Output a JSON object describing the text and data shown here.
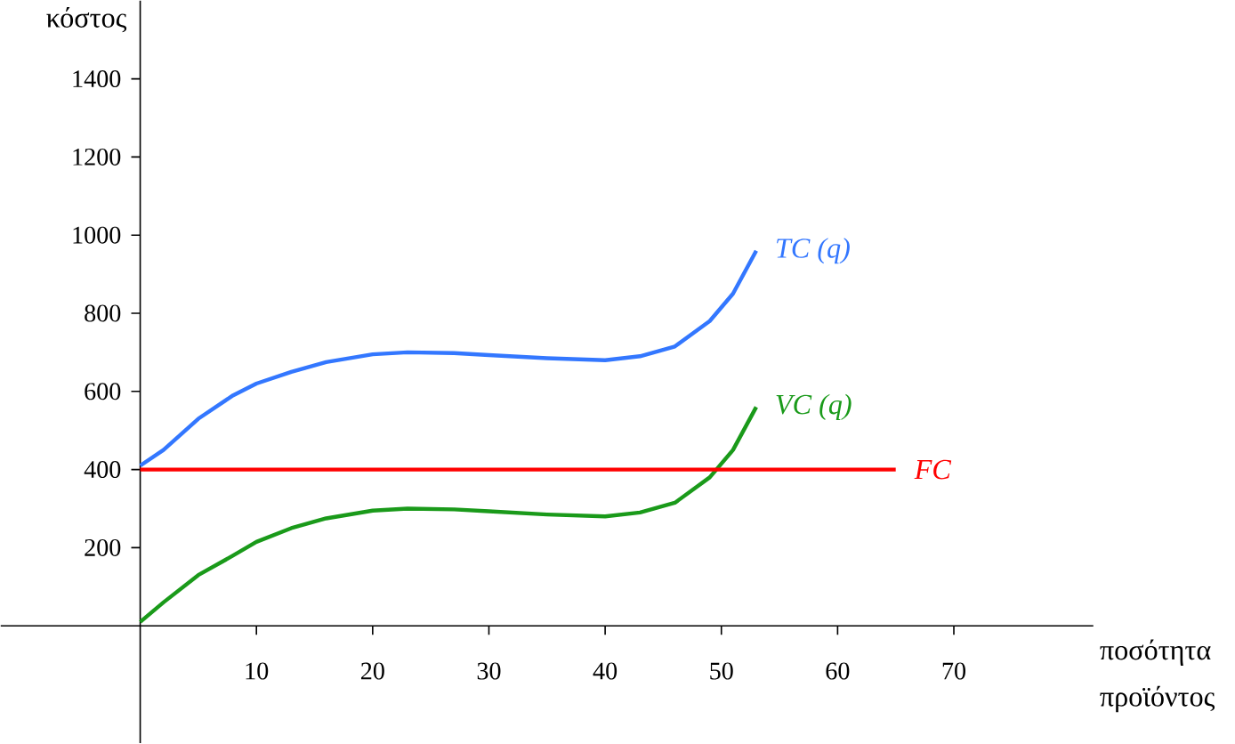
{
  "chart_data": {
    "type": "line",
    "xlabel": "ποσότητα προϊόντος",
    "ylabel": "κόστος",
    "xlim": [
      -12,
      82
    ],
    "ylim": [
      -300,
      1600
    ],
    "xticks": [
      10,
      20,
      30,
      40,
      50,
      60,
      70
    ],
    "yticks": [
      200,
      400,
      600,
      800,
      1000,
      1200,
      1400
    ],
    "series": [
      {
        "name": "TC (q)",
        "color": "#3377ff",
        "x": [
          0,
          2,
          5,
          8,
          10,
          13,
          16,
          20,
          23,
          27,
          30,
          35,
          40,
          43,
          46,
          49,
          51,
          53
        ],
        "values": [
          410,
          450,
          530,
          590,
          620,
          650,
          675,
          695,
          700,
          698,
          693,
          685,
          680,
          690,
          715,
          780,
          850,
          960
        ]
      },
      {
        "name": "VC (q)",
        "color": "#1a9a1a",
        "x": [
          0,
          2,
          5,
          8,
          10,
          13,
          16,
          20,
          23,
          27,
          30,
          35,
          40,
          43,
          46,
          49,
          51,
          53
        ],
        "values": [
          10,
          60,
          130,
          180,
          215,
          250,
          275,
          295,
          300,
          298,
          293,
          285,
          280,
          290,
          315,
          380,
          450,
          560
        ]
      },
      {
        "name": "FC",
        "color": "#ff0000",
        "x": [
          0,
          65
        ],
        "values": [
          400,
          400
        ]
      }
    ]
  }
}
